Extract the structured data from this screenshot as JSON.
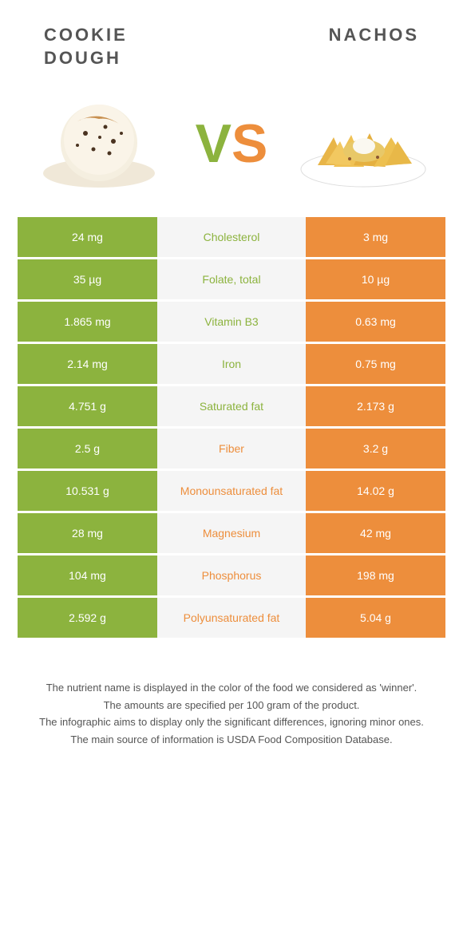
{
  "foods": {
    "left": {
      "name": "COOKIE DOUGH",
      "color": "#8cb33e"
    },
    "right": {
      "name": "NACHOS",
      "color": "#ed8e3c"
    }
  },
  "vs": {
    "v": "V",
    "s": "S"
  },
  "colors": {
    "green": "#8cb33e",
    "orange": "#ed8e3c",
    "midBg": "#f5f5f5",
    "white": "#ffffff",
    "text": "#555555"
  },
  "rows": [
    {
      "label": "Cholesterol",
      "left": "24 mg",
      "right": "3 mg",
      "winner": "left"
    },
    {
      "label": "Folate, total",
      "left": "35 µg",
      "right": "10 µg",
      "winner": "left"
    },
    {
      "label": "Vitamin B3",
      "left": "1.865 mg",
      "right": "0.63 mg",
      "winner": "left"
    },
    {
      "label": "Iron",
      "left": "2.14 mg",
      "right": "0.75 mg",
      "winner": "left"
    },
    {
      "label": "Saturated fat",
      "left": "4.751 g",
      "right": "2.173 g",
      "winner": "left"
    },
    {
      "label": "Fiber",
      "left": "2.5 g",
      "right": "3.2 g",
      "winner": "right"
    },
    {
      "label": "Monounsaturated fat",
      "left": "10.531 g",
      "right": "14.02 g",
      "winner": "right"
    },
    {
      "label": "Magnesium",
      "left": "28 mg",
      "right": "42 mg",
      "winner": "right"
    },
    {
      "label": "Phosphorus",
      "left": "104 mg",
      "right": "198 mg",
      "winner": "right"
    },
    {
      "label": "Polyunsaturated fat",
      "left": "2.592 g",
      "right": "5.04 g",
      "winner": "right"
    }
  ],
  "footer": {
    "line1": "The nutrient name is displayed in the color of the food we considered as 'winner'.",
    "line2": "The amounts are specified per 100 gram of the product.",
    "line3": "The infographic aims to display only the significant differences, ignoring minor ones.",
    "line4": "The main source of information is USDA Food Composition Database."
  }
}
